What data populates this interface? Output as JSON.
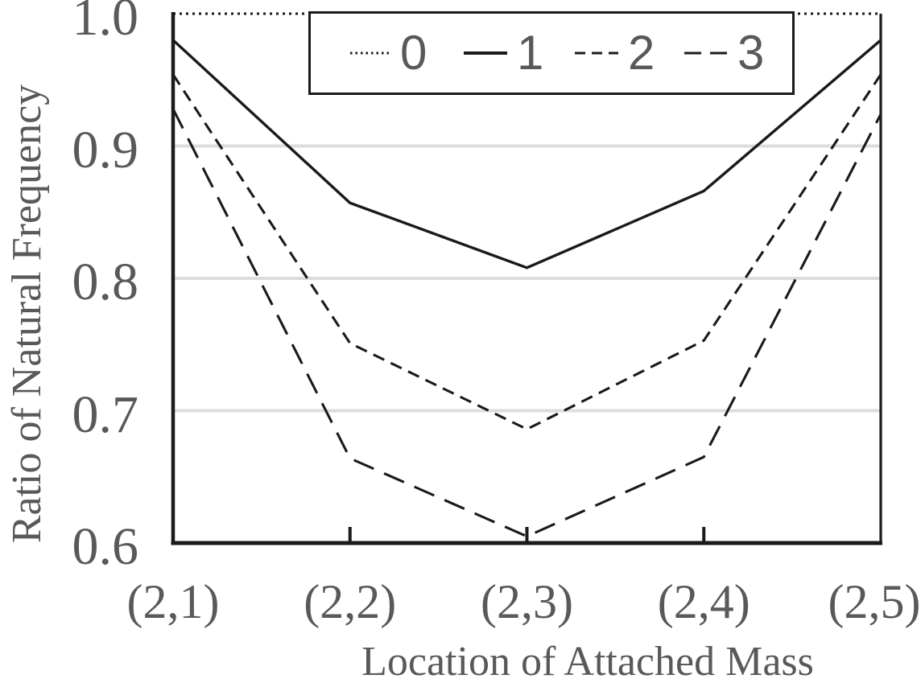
{
  "chart_data": {
    "type": "line",
    "title": "",
    "xlabel": "Location of Attached Mass",
    "ylabel": "Ratio of Natural Frequency",
    "categories": [
      "(2,1)",
      "(2,2)",
      "(2,3)",
      "(2,4)",
      "(2,5)"
    ],
    "series": [
      {
        "name": "0",
        "line_style": "dotted",
        "values": [
          1.0,
          1.0,
          1.0,
          1.0,
          1.0
        ]
      },
      {
        "name": "1",
        "line_style": "solid",
        "values": [
          0.98,
          0.857,
          0.808,
          0.866,
          0.98
        ]
      },
      {
        "name": "2",
        "line_style": "dashed",
        "values": [
          0.954,
          0.751,
          0.686,
          0.753,
          0.954
        ]
      },
      {
        "name": "3",
        "line_style": "long-dashed",
        "values": [
          0.928,
          0.664,
          0.605,
          0.665,
          0.924
        ]
      }
    ],
    "ylim": [
      0.6,
      1.0
    ],
    "yticks": [
      1.0,
      0.9,
      0.8,
      0.7,
      0.6
    ],
    "ytick_labels": [
      "1.0",
      "0.9",
      "0.8",
      "0.7",
      "0.6"
    ],
    "gridlines": {
      "horizontal_at": [
        0.9,
        0.8,
        0.7
      ],
      "color": "#dcdcdc"
    },
    "legend": {
      "position": "top",
      "entries": [
        "0",
        "1",
        "2",
        "3"
      ]
    },
    "colors": {
      "line": "#1a1a1a",
      "axis": "#1a1a1a",
      "text": "#595959",
      "grid": "#dcdcdc",
      "background": "#ffffff"
    }
  }
}
